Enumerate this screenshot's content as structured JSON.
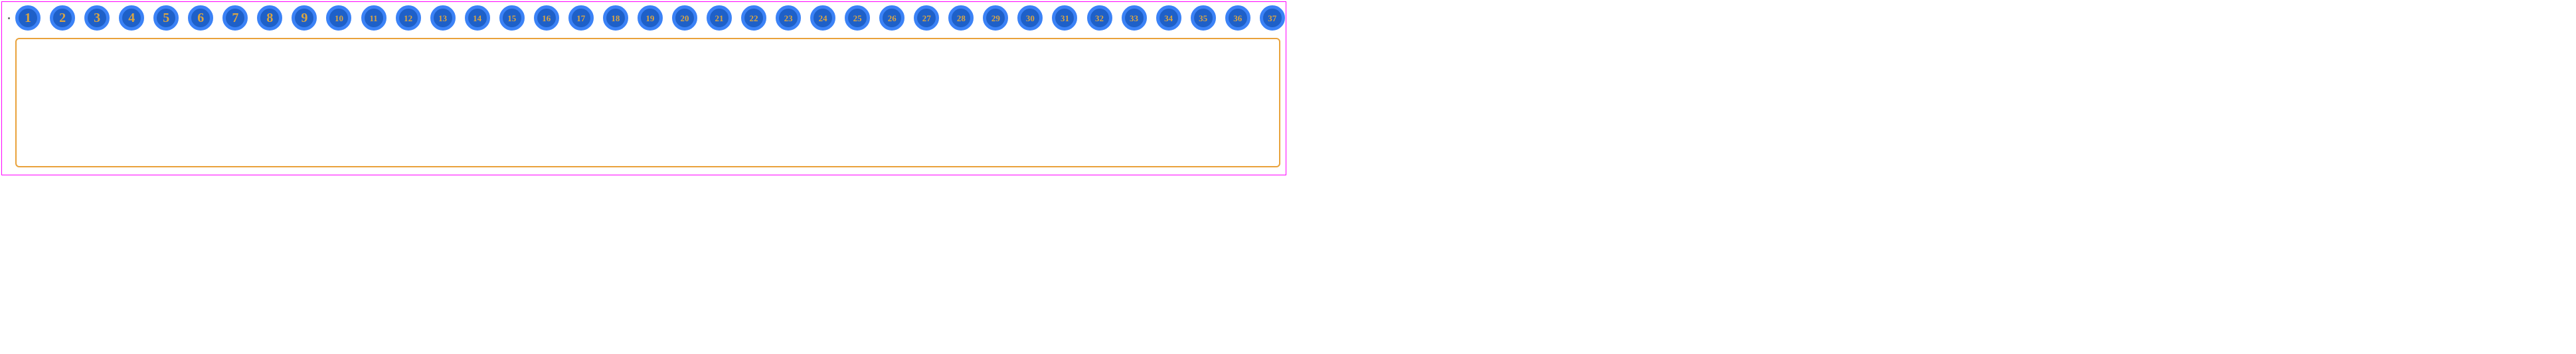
{
  "outer_border_color": "#ff00ff",
  "panel_border_color": "#e9a23b",
  "tab_outer_color": "#3b82f6",
  "tab_inner_color": "#1e60c8",
  "tab_text_color": "#d9a441",
  "tab_ring_width": 5,
  "tab_font_large": 20,
  "tab_font_small": 13,
  "tabs": [
    {
      "label": "1"
    },
    {
      "label": "2"
    },
    {
      "label": "3"
    },
    {
      "label": "4"
    },
    {
      "label": "5"
    },
    {
      "label": "6"
    },
    {
      "label": "7"
    },
    {
      "label": "8"
    },
    {
      "label": "9"
    },
    {
      "label": "10"
    },
    {
      "label": "11"
    },
    {
      "label": "12"
    },
    {
      "label": "13"
    },
    {
      "label": "14"
    },
    {
      "label": "15"
    },
    {
      "label": "16"
    },
    {
      "label": "17"
    },
    {
      "label": "18"
    },
    {
      "label": "19"
    },
    {
      "label": "20"
    },
    {
      "label": "21"
    },
    {
      "label": "22"
    },
    {
      "label": "23"
    },
    {
      "label": "24"
    },
    {
      "label": "25"
    },
    {
      "label": "26"
    },
    {
      "label": "27"
    },
    {
      "label": "28"
    },
    {
      "label": "29"
    },
    {
      "label": "30"
    },
    {
      "label": "31"
    },
    {
      "label": "32"
    },
    {
      "label": "33"
    },
    {
      "label": "34"
    },
    {
      "label": "35"
    },
    {
      "label": "36"
    },
    {
      "label": "37"
    }
  ]
}
